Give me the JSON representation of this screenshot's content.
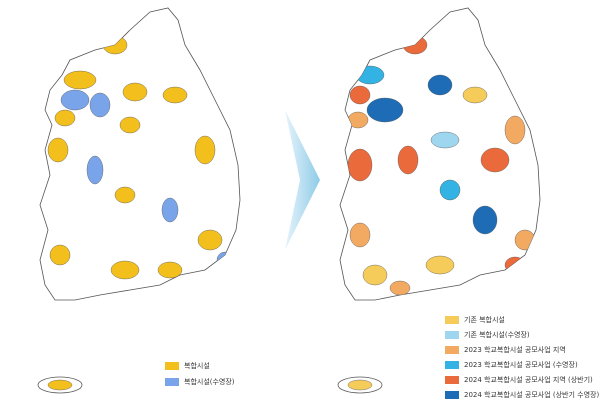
{
  "left_map": {
    "legend": [
      {
        "label": "복합시설",
        "color": "#f2bf1d"
      },
      {
        "label": "복합시설(수영장)",
        "color": "#7aa4ea"
      }
    ]
  },
  "right_map": {
    "legend": [
      {
        "label": "기존 복합시설",
        "color": "#f5cc5a"
      },
      {
        "label": "기존 복합시설(수영장)",
        "color": "#9ed6f0"
      },
      {
        "label": "2023 학교복합시설 공모사업 지역",
        "color": "#f2a961"
      },
      {
        "label": "2023 학교복합시설 공모사업 (수영장)",
        "color": "#33b3e3"
      },
      {
        "label": "2024 학교복합시설 공모사업 지역 (상반기)",
        "color": "#eb6a3c"
      },
      {
        "label": "2024 학교복합시설 공모사업 (상반기 수영장)",
        "color": "#1d6cb5"
      }
    ]
  }
}
